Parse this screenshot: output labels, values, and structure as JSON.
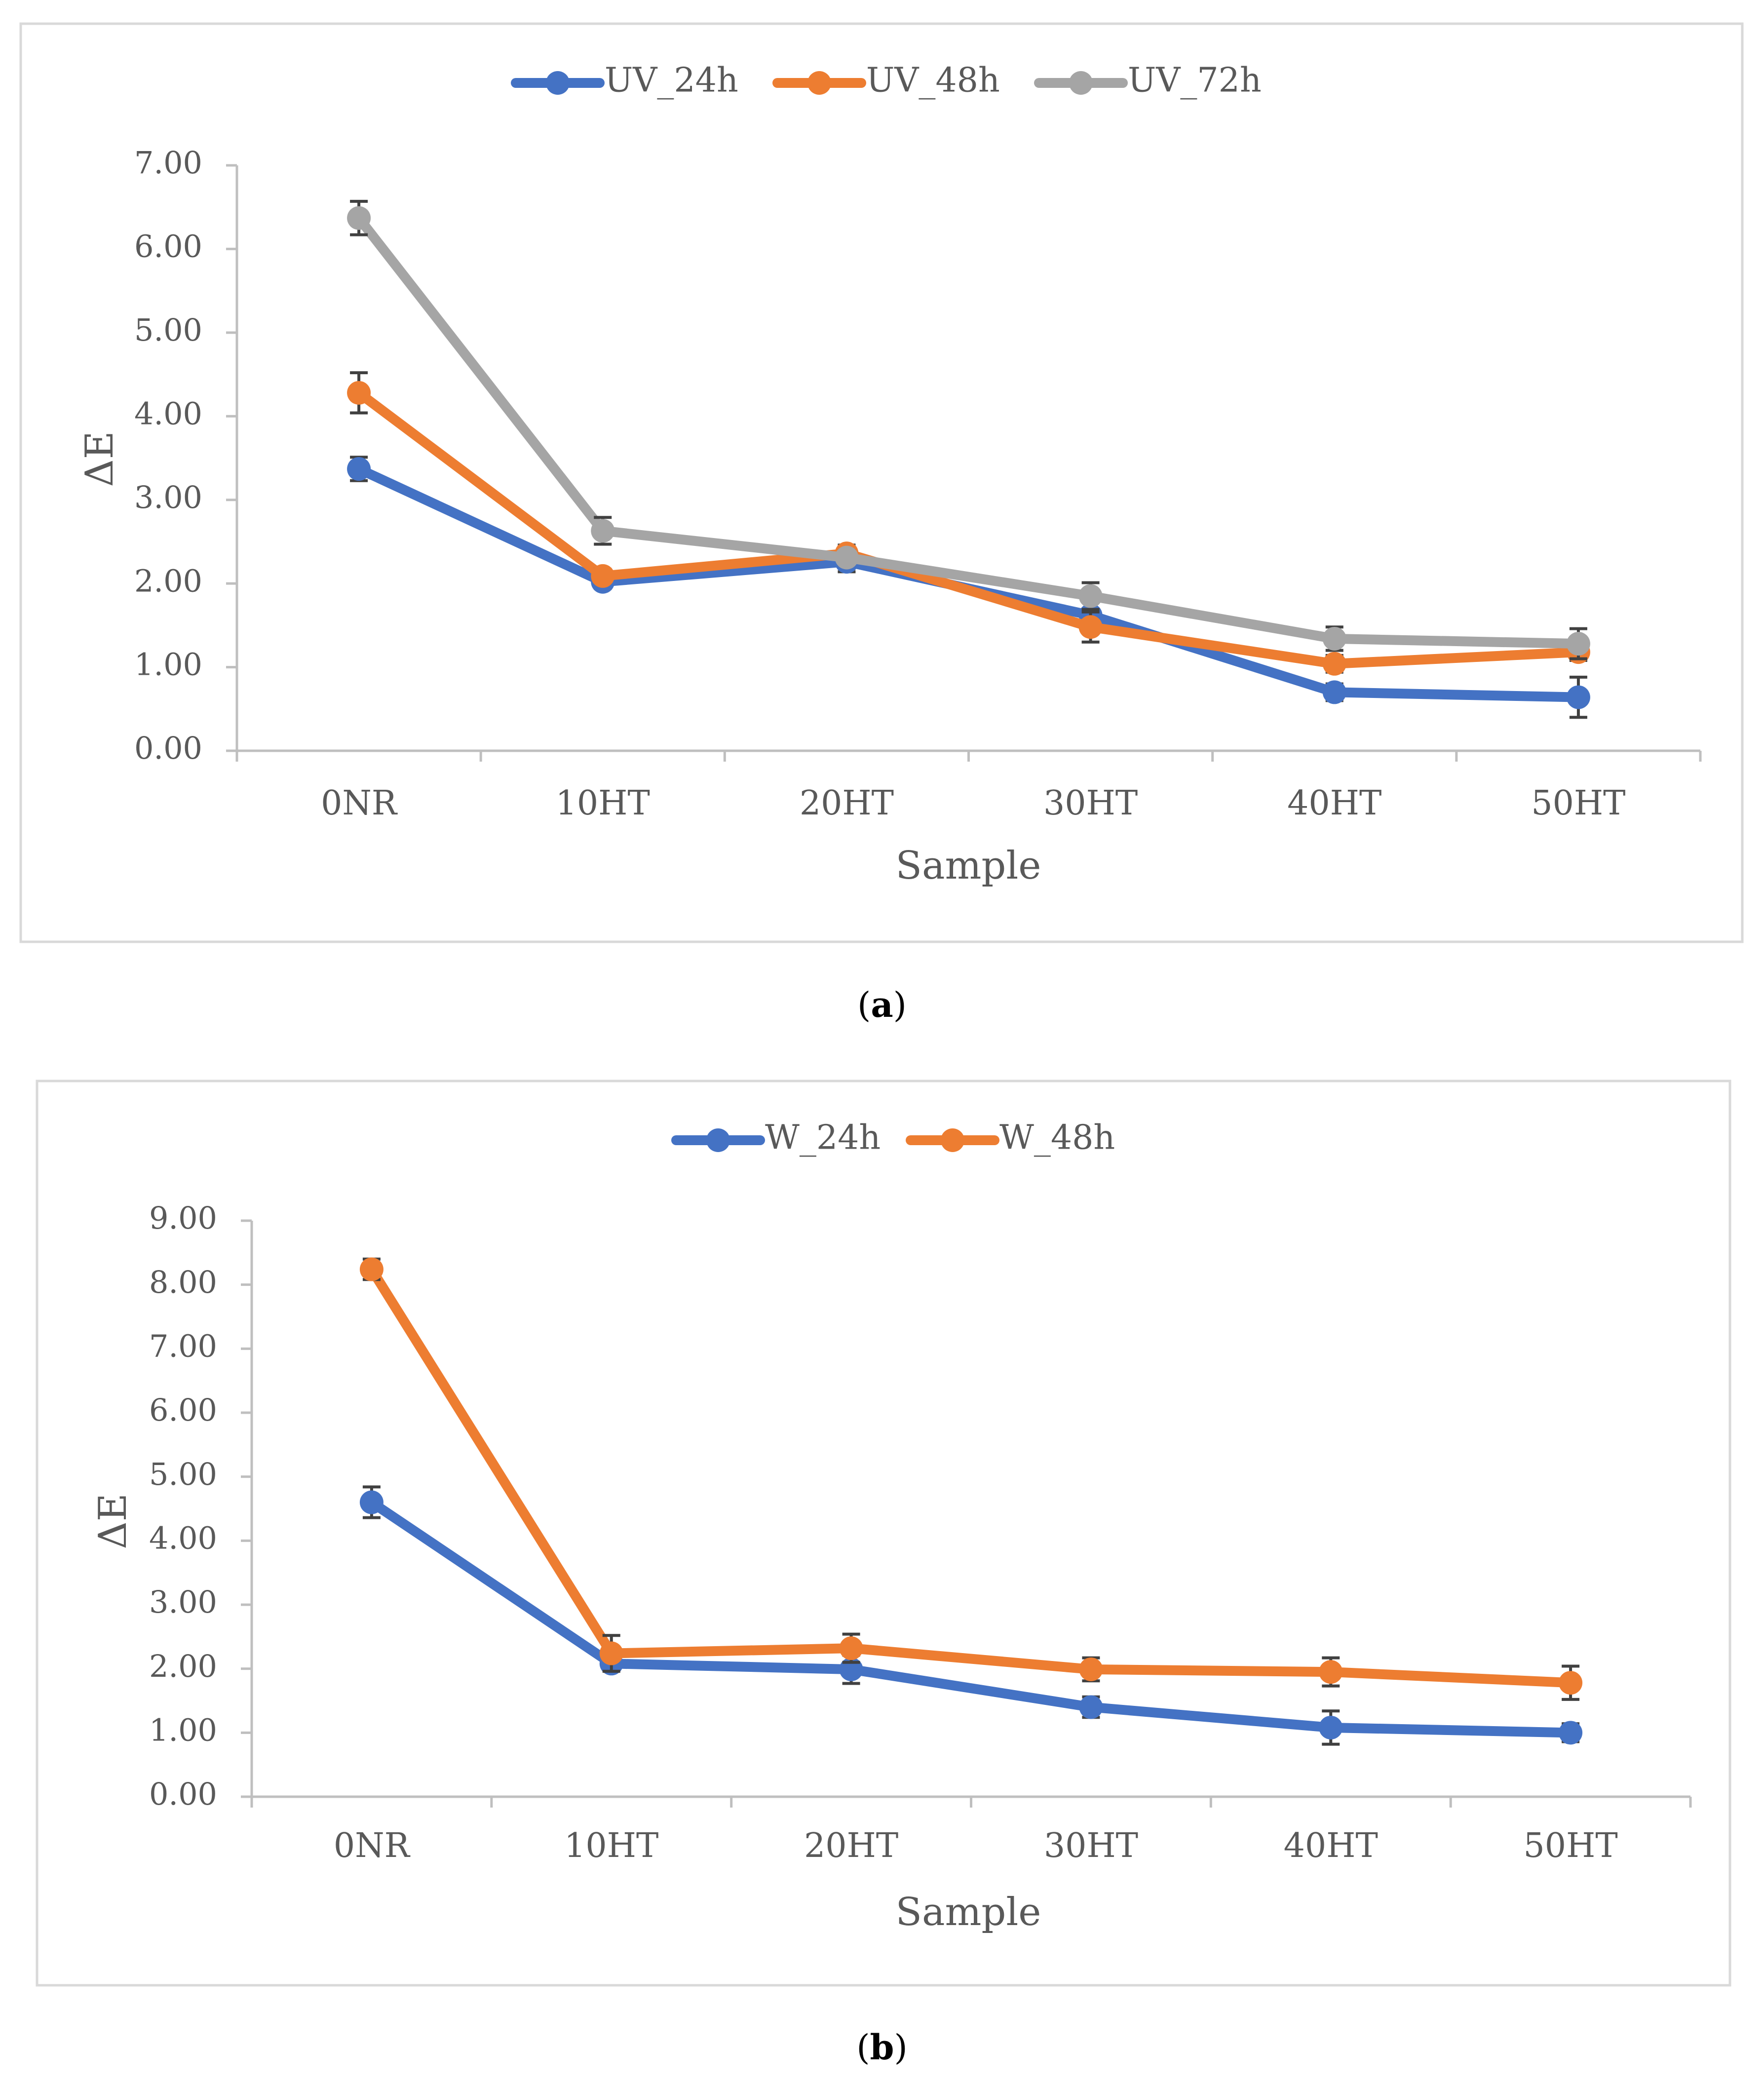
{
  "colors": {
    "blue": "#4472C4",
    "orange": "#ED7D31",
    "gray": "#A5A5A5"
  },
  "chart_data": [
    {
      "type": "line",
      "panel": "(a)",
      "caption_letter": "a",
      "xlabel": "Sample",
      "ylabel": "ΔE",
      "categories": [
        "0NR",
        "10HT",
        "20HT",
        "30HT",
        "40HT",
        "50HT"
      ],
      "ylim": [
        0,
        7
      ],
      "ytick_labels": [
        "0.00",
        "1.00",
        "2.00",
        "3.00",
        "4.00",
        "5.00",
        "6.00",
        "7.00"
      ],
      "legend_position": "top-center",
      "series": [
        {
          "name": "UV_24h",
          "color": "#4472C4",
          "values": [
            3.37,
            2.02,
            2.26,
            1.62,
            0.7,
            0.64
          ],
          "errors": [
            0.14,
            0.08,
            0.12,
            0.16,
            0.1,
            0.24
          ]
        },
        {
          "name": "UV_48h",
          "color": "#ED7D31",
          "values": [
            4.28,
            2.09,
            2.36,
            1.48,
            1.04,
            1.18
          ],
          "errors": [
            0.24,
            0.08,
            0.1,
            0.18,
            0.1,
            0.1
          ]
        },
        {
          "name": "UV_72h",
          "color": "#A5A5A5",
          "values": [
            6.37,
            2.63,
            2.31,
            1.85,
            1.34,
            1.28
          ],
          "errors": [
            0.2,
            0.16,
            0.08,
            0.16,
            0.14,
            0.18
          ]
        }
      ]
    },
    {
      "type": "line",
      "panel": "(b)",
      "caption_letter": "b",
      "xlabel": "Sample",
      "ylabel": "ΔE",
      "categories": [
        "0NR",
        "10HT",
        "20HT",
        "30HT",
        "40HT",
        "50HT"
      ],
      "ylim": [
        0,
        9
      ],
      "ytick_labels": [
        "0.00",
        "1.00",
        "2.00",
        "3.00",
        "4.00",
        "5.00",
        "6.00",
        "7.00",
        "8.00",
        "9.00"
      ],
      "legend_position": "top-center",
      "series": [
        {
          "name": "W_24h",
          "color": "#4472C4",
          "values": [
            4.6,
            2.08,
            1.99,
            1.4,
            1.08,
            1.0
          ],
          "errors": [
            0.24,
            0.1,
            0.22,
            0.16,
            0.26,
            0.14
          ]
        },
        {
          "name": "W_48h",
          "color": "#ED7D31",
          "values": [
            8.24,
            2.24,
            2.32,
            1.99,
            1.95,
            1.78
          ],
          "errors": [
            0.16,
            0.28,
            0.22,
            0.18,
            0.22,
            0.26
          ]
        }
      ]
    }
  ]
}
